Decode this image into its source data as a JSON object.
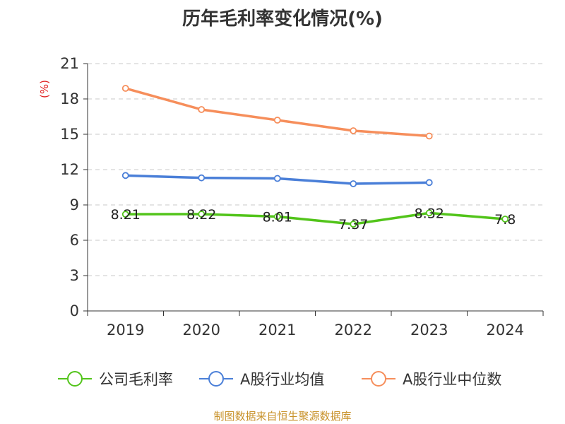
{
  "chart_data": {
    "type": "line",
    "title": "历年毛利率变化情况(%)",
    "unit_label": "(%)",
    "categories": [
      "2019",
      "2020",
      "2021",
      "2022",
      "2023",
      "2024"
    ],
    "ylim": [
      0,
      21
    ],
    "yticks": [
      0,
      3,
      6,
      9,
      12,
      15,
      18,
      21
    ],
    "grid": true,
    "legend_position": "bottom",
    "series": [
      {
        "name": "公司毛利率",
        "color": "#52c41a",
        "values": [
          8.21,
          8.22,
          8.01,
          7.37,
          8.32,
          7.8
        ],
        "labels": [
          "8.21",
          "8.22",
          "8.01",
          "7.37",
          "8.32",
          "7.8"
        ]
      },
      {
        "name": "A股行业均值",
        "color": "#4a7fd8",
        "values": [
          11.5,
          11.3,
          11.25,
          10.8,
          10.9,
          null
        ]
      },
      {
        "name": "A股行业中位数",
        "color": "#f68e5b",
        "values": [
          18.9,
          17.1,
          16.2,
          15.3,
          14.85,
          null
        ]
      }
    ]
  },
  "source": "制图数据来自恒生聚源数据库"
}
